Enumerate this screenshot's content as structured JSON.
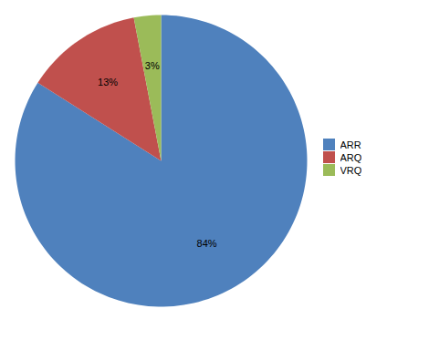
{
  "chart_data": {
    "type": "pie",
    "categories": [
      "ARR",
      "ARQ",
      "VRQ"
    ],
    "values": [
      84,
      13,
      3
    ],
    "value_labels": [
      "84%",
      "13%",
      "3%"
    ],
    "colors": [
      "#4F81BD",
      "#C0504D",
      "#9BBB59"
    ],
    "data_labels": true,
    "legend": "right"
  }
}
